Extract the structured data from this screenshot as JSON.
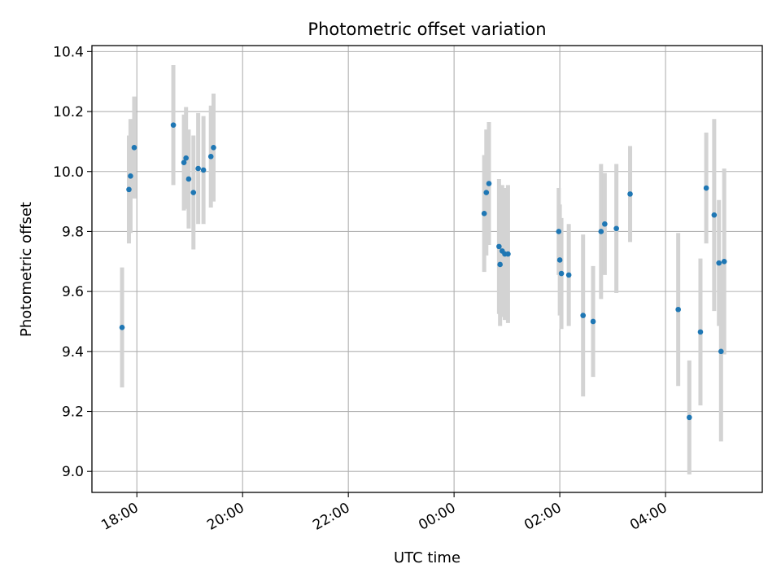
{
  "chart_data": {
    "type": "scatter",
    "title": "Photometric offset variation",
    "xlabel": "UTC time",
    "ylabel": "Photometric offset",
    "grid": true,
    "xlim": [
      -6.85,
      5.83
    ],
    "ylim": [
      8.93,
      10.42
    ],
    "x_unit": "hours relative to 00:00 UTC",
    "xticks": [
      {
        "value": -6,
        "label": "18:00"
      },
      {
        "value": -4,
        "label": "20:00"
      },
      {
        "value": -2,
        "label": "22:00"
      },
      {
        "value": 0,
        "label": "00:00"
      },
      {
        "value": 2,
        "label": "02:00"
      },
      {
        "value": 4,
        "label": "04:00"
      }
    ],
    "yticks": [
      {
        "value": 9.0,
        "label": "9.0"
      },
      {
        "value": 9.2,
        "label": "9.2"
      },
      {
        "value": 9.4,
        "label": "9.4"
      },
      {
        "value": 9.6,
        "label": "9.6"
      },
      {
        "value": 9.8,
        "label": "9.8"
      },
      {
        "value": 10.0,
        "label": "10.0"
      },
      {
        "value": 10.2,
        "label": "10.2"
      },
      {
        "value": 10.4,
        "label": "10.4"
      }
    ],
    "marker_color": "#1f77b4",
    "errorbar_color": "#d3d3d3",
    "points": [
      {
        "x": -6.28,
        "y": 9.48,
        "err": 0.2
      },
      {
        "x": -6.15,
        "y": 9.94,
        "err": 0.18
      },
      {
        "x": -6.12,
        "y": 9.985,
        "err": 0.19
      },
      {
        "x": -6.05,
        "y": 10.08,
        "err": 0.17
      },
      {
        "x": -5.31,
        "y": 10.155,
        "err": 0.2
      },
      {
        "x": -5.11,
        "y": 10.03,
        "err": 0.16
      },
      {
        "x": -5.07,
        "y": 10.045,
        "err": 0.17
      },
      {
        "x": -5.02,
        "y": 9.975,
        "err": 0.165
      },
      {
        "x": -4.93,
        "y": 9.93,
        "err": 0.19
      },
      {
        "x": -4.84,
        "y": 10.01,
        "err": 0.185
      },
      {
        "x": -4.74,
        "y": 10.005,
        "err": 0.18
      },
      {
        "x": -4.6,
        "y": 10.05,
        "err": 0.17
      },
      {
        "x": -4.55,
        "y": 10.08,
        "err": 0.18
      },
      {
        "x": 0.57,
        "y": 9.86,
        "err": 0.195
      },
      {
        "x": 0.61,
        "y": 9.93,
        "err": 0.21
      },
      {
        "x": 0.66,
        "y": 9.96,
        "err": 0.205
      },
      {
        "x": 0.85,
        "y": 9.75,
        "err": 0.225
      },
      {
        "x": 0.87,
        "y": 9.69,
        "err": 0.205
      },
      {
        "x": 0.91,
        "y": 9.735,
        "err": 0.22
      },
      {
        "x": 0.96,
        "y": 9.725,
        "err": 0.22
      },
      {
        "x": 1.02,
        "y": 9.725,
        "err": 0.23
      },
      {
        "x": 1.98,
        "y": 9.8,
        "err": 0.145
      },
      {
        "x": 2.0,
        "y": 9.705,
        "err": 0.185
      },
      {
        "x": 2.03,
        "y": 9.66,
        "err": 0.185
      },
      {
        "x": 2.17,
        "y": 9.655,
        "err": 0.17
      },
      {
        "x": 2.44,
        "y": 9.52,
        "err": 0.27
      },
      {
        "x": 2.63,
        "y": 9.5,
        "err": 0.185
      },
      {
        "x": 2.78,
        "y": 9.8,
        "err": 0.225
      },
      {
        "x": 2.85,
        "y": 9.825,
        "err": 0.17
      },
      {
        "x": 3.07,
        "y": 9.81,
        "err": 0.215
      },
      {
        "x": 3.33,
        "y": 9.925,
        "err": 0.16
      },
      {
        "x": 4.24,
        "y": 9.54,
        "err": 0.255
      },
      {
        "x": 4.45,
        "y": 9.18,
        "err": 0.19
      },
      {
        "x": 4.66,
        "y": 9.465,
        "err": 0.245
      },
      {
        "x": 4.77,
        "y": 9.945,
        "err": 0.185
      },
      {
        "x": 4.92,
        "y": 9.855,
        "err": 0.32
      },
      {
        "x": 5.01,
        "y": 9.695,
        "err": 0.21
      },
      {
        "x": 5.05,
        "y": 9.4,
        "err": 0.3
      },
      {
        "x": 5.11,
        "y": 9.7,
        "err": 0.31
      }
    ]
  }
}
